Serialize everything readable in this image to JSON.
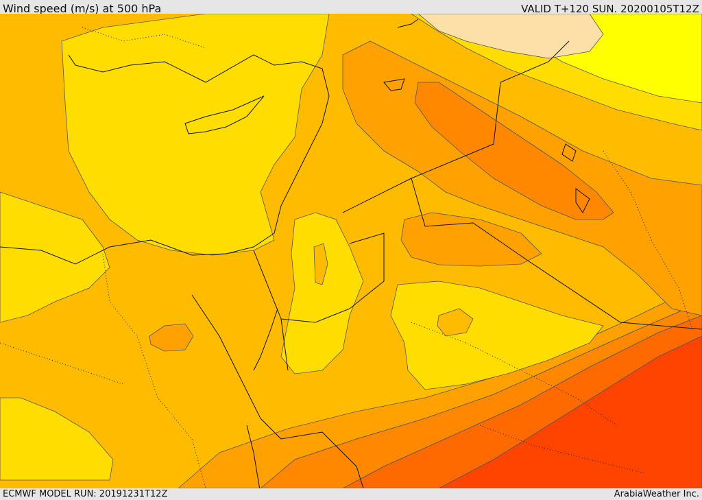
{
  "header": {
    "title": "Wind speed (m/s) at 500 hPa",
    "valid_time": "VALID T+120 SUN. 20200105T12Z"
  },
  "footer": {
    "model_run": "ECMWF MODEL RUN: 20191231T12Z",
    "credit": "ArabiaWeather Inc."
  },
  "colors": {
    "very_light": "#fde0a8",
    "yellow": "#ffff00",
    "gold": "#ffdd00",
    "light_orange": "#ffbb00",
    "orange": "#ffa100",
    "dark_orange": "#ff8800",
    "red_orange": "#ff6a00",
    "red": "#ff4400",
    "land": "#ffd400"
  }
}
